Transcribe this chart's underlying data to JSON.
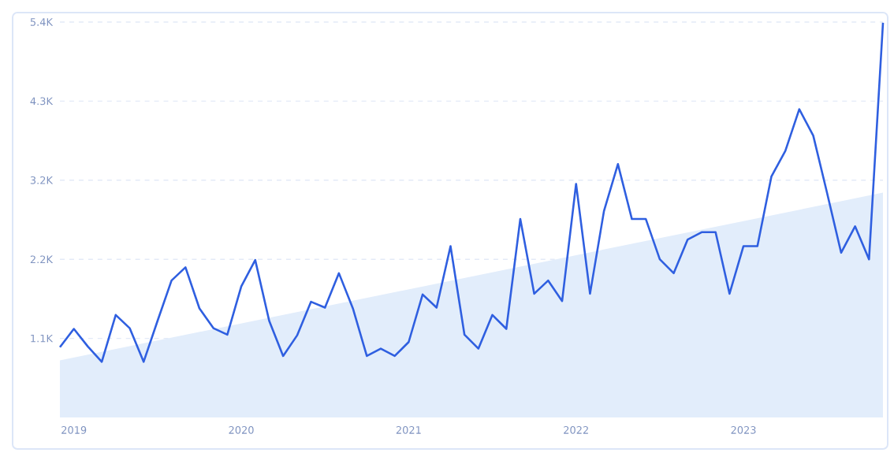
{
  "chart_data": {
    "type": "line",
    "x": [
      "2018-12",
      "2019-01",
      "2019-02",
      "2019-03",
      "2019-04",
      "2019-05",
      "2019-06",
      "2019-07",
      "2019-08",
      "2019-09",
      "2019-10",
      "2019-11",
      "2019-12",
      "2020-01",
      "2020-02",
      "2020-03",
      "2020-04",
      "2020-05",
      "2020-06",
      "2020-07",
      "2020-08",
      "2020-09",
      "2020-10",
      "2020-11",
      "2020-12",
      "2021-01",
      "2021-02",
      "2021-03",
      "2021-04",
      "2021-05",
      "2021-06",
      "2021-07",
      "2021-08",
      "2021-09",
      "2021-10",
      "2021-11",
      "2021-12",
      "2022-01",
      "2022-02",
      "2022-03",
      "2022-04",
      "2022-05",
      "2022-06",
      "2022-07",
      "2022-08",
      "2022-09",
      "2022-10",
      "2022-11",
      "2022-12",
      "2023-01",
      "2023-02",
      "2023-03",
      "2023-04",
      "2023-05",
      "2023-06",
      "2023-07",
      "2023-08",
      "2023-09",
      "2023-10",
      "2023-11"
    ],
    "series": [
      {
        "type": "area",
        "color": "#e2edfb",
        "x": [
          "2018-12",
          "2023-11"
        ],
        "values": [
          780,
          3070
        ]
      },
      {
        "color": "#2f5fe0",
        "values": [
          960,
          1210,
          970,
          760,
          1400,
          1220,
          760,
          1320,
          1870,
          2050,
          1490,
          1220,
          1130,
          1790,
          2150,
          1320,
          840,
          1120,
          1580,
          1500,
          1970,
          1490,
          840,
          940,
          840,
          1030,
          1680,
          1500,
          2340,
          1130,
          940,
          1400,
          1210,
          2710,
          1690,
          1870,
          1590,
          3190,
          1690,
          2820,
          3460,
          2710,
          2710,
          2160,
          1970,
          2430,
          2530,
          2530,
          1690,
          2340,
          2340,
          3290,
          3640,
          4210,
          3850,
          3060,
          2250,
          2610,
          2160,
          5390
        ]
      }
    ],
    "xlim": [
      "2018-12",
      "2023-11"
    ],
    "xticks": [
      {
        "value": "2019-01",
        "label": "2019"
      },
      {
        "value": "2020-01",
        "label": "2020"
      },
      {
        "value": "2021-01",
        "label": "2021"
      },
      {
        "value": "2022-01",
        "label": "2022"
      },
      {
        "value": "2023-01",
        "label": "2023"
      }
    ],
    "ylim": [
      0,
      5400
    ],
    "yticks": [
      {
        "value": 1080,
        "label": "1.1K"
      },
      {
        "value": 2160,
        "label": "2.2K"
      },
      {
        "value": 3240,
        "label": "3.2K"
      },
      {
        "value": 4320,
        "label": "4.3K"
      },
      {
        "value": 5400,
        "label": "5.4K"
      }
    ],
    "grid": "y",
    "legend": false,
    "marker": "none",
    "line_style": "solid"
  }
}
